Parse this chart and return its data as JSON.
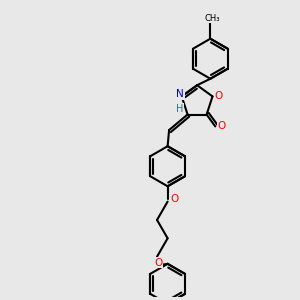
{
  "background_color": "#e8e8e8",
  "bond_color": "#000000",
  "bond_width": 1.5,
  "atom_colors": {
    "N": "#0000cd",
    "O": "#ff0000",
    "H": "#008b8b",
    "C": "#000000"
  },
  "fig_width": 3.0,
  "fig_height": 3.0,
  "dpi": 100,
  "xlim": [
    0,
    10
  ],
  "ylim": [
    0,
    10
  ]
}
